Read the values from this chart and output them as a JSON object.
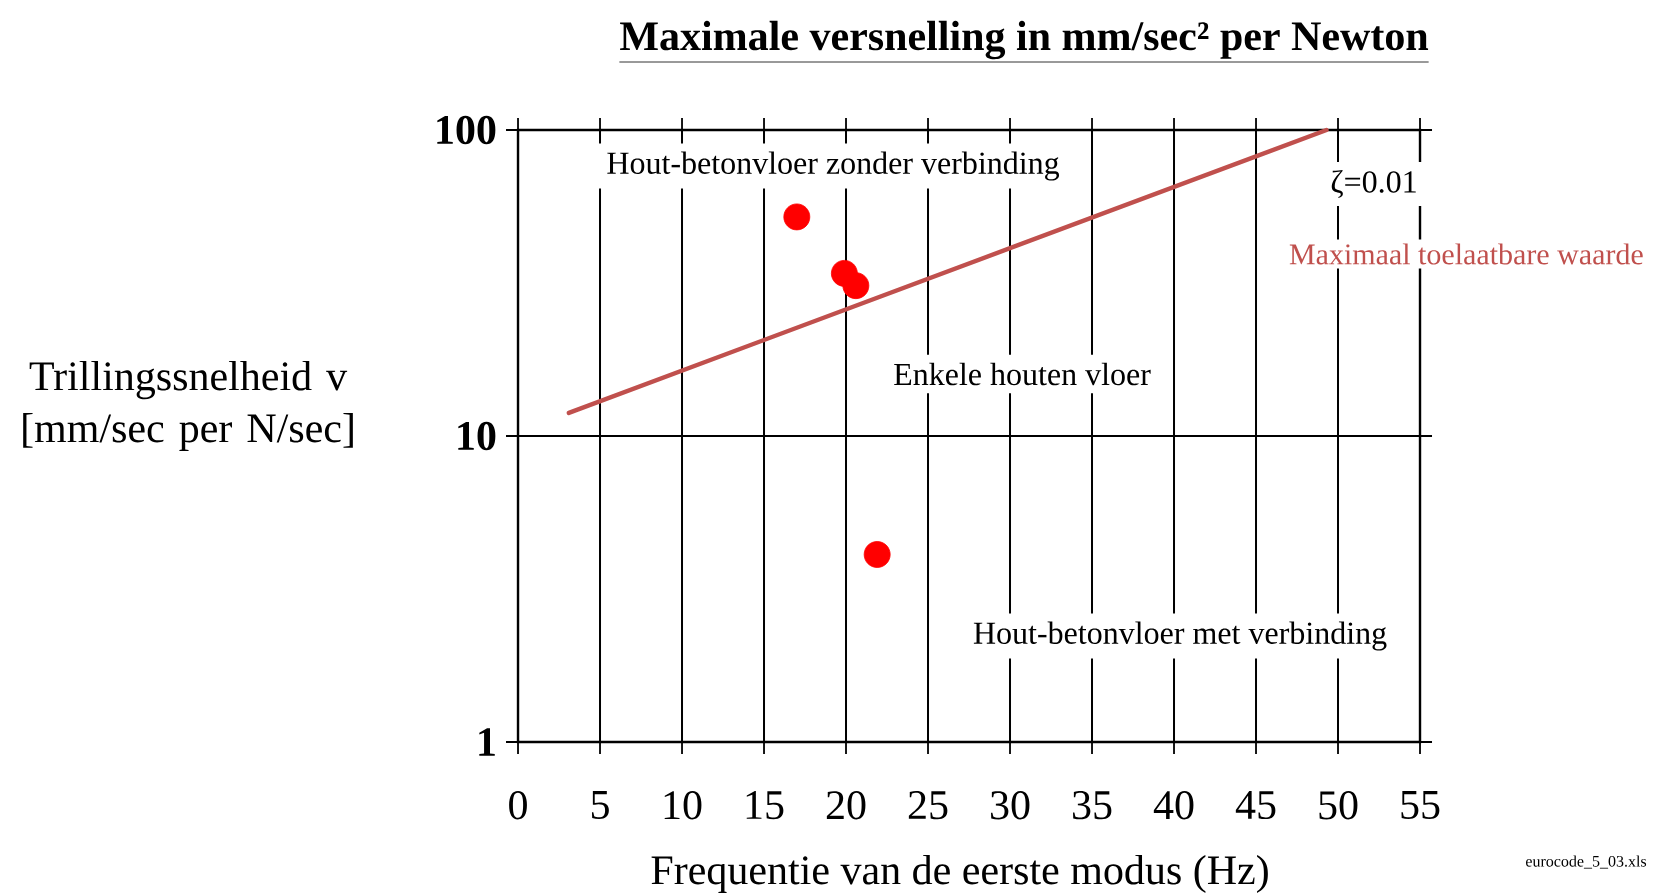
{
  "chart_data": {
    "type": "scatter",
    "title": "Maximale versnelling in mm/sec² per Newton",
    "xlabel": "Frequentie van de eerste modus (Hz)",
    "ylabel": "Trillingssnelheid v [mm/sec per N/sec]",
    "log": "y",
    "grid": true,
    "marker": "circle",
    "xlim": [
      0,
      55
    ],
    "ylim": [
      1,
      100
    ],
    "xticks": [
      0,
      5,
      10,
      15,
      20,
      25,
      30,
      35,
      40,
      45,
      50,
      55
    ],
    "yticks": [
      1,
      10,
      100
    ],
    "series": [
      {
        "color": "#ff0000",
        "x": [
          17,
          19.9,
          20.6,
          21.9
        ],
        "values": [
          52,
          34,
          31,
          4.1
        ]
      },
      {
        "type": "line",
        "name": "Maximaal toelaatbare waarde",
        "color": "#c0504d",
        "marker": "none",
        "x": [
          3.1,
          49.3
        ],
        "values": [
          11.9,
          100
        ]
      }
    ],
    "annotations": [
      "Hout-betonvloer zonder verbinding",
      "Enkele houten vloer",
      "Hout-betonvloer met verbinding",
      "ζ=0.01",
      "eurocode_5_03.xls"
    ]
  }
}
